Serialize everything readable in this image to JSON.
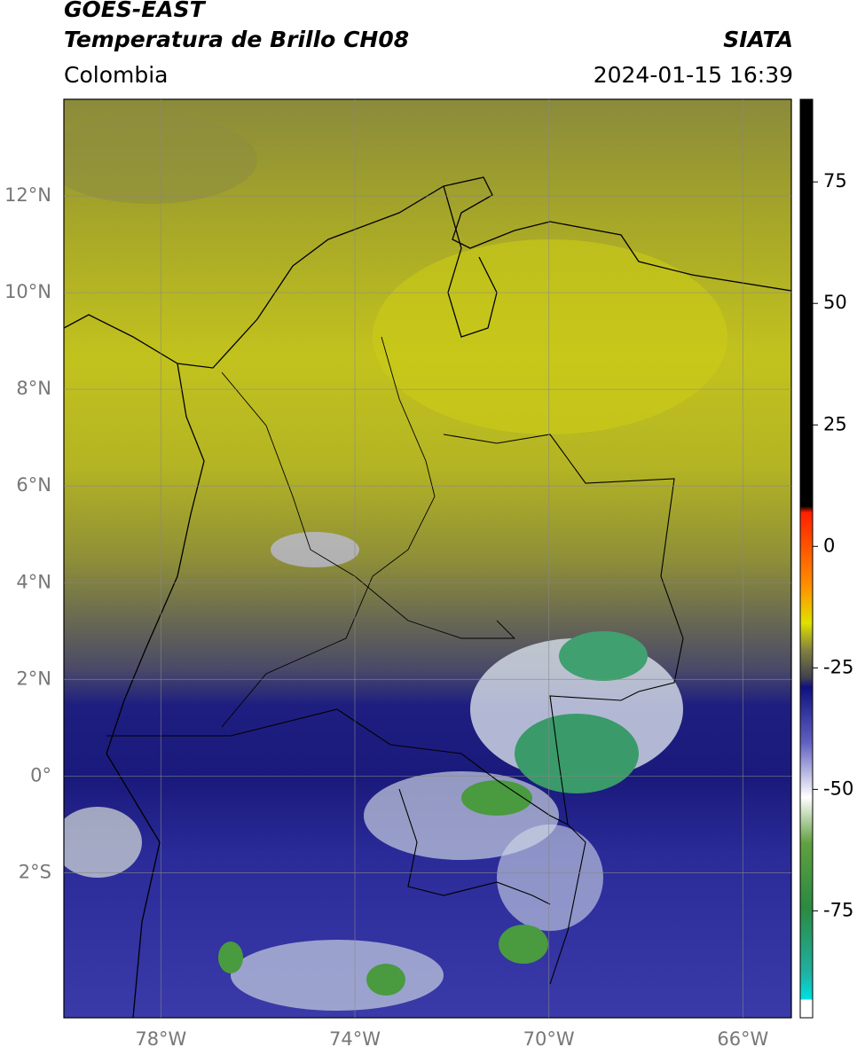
{
  "header": {
    "title": "GOES-EAST",
    "subtitle": "Temperatura de Brillo CH08",
    "source": "SIATA",
    "region": "Colombia",
    "datetime": "2024-01-15 16:39"
  },
  "map": {
    "lonlim": [
      -80,
      -65
    ],
    "latlim": [
      -5,
      14
    ],
    "lon_ticks": [
      {
        "value": -78,
        "label": "78°W"
      },
      {
        "value": -74,
        "label": "74°W"
      },
      {
        "value": -70,
        "label": "70°W"
      },
      {
        "value": -66,
        "label": "66°W"
      }
    ],
    "lat_ticks": [
      {
        "value": 12,
        "label": "12°N"
      },
      {
        "value": 10,
        "label": "10°N"
      },
      {
        "value": 8,
        "label": "8°N"
      },
      {
        "value": 6,
        "label": "6°N"
      },
      {
        "value": 4,
        "label": "4°N"
      },
      {
        "value": 2,
        "label": "2°N"
      },
      {
        "value": 0,
        "label": "0°"
      },
      {
        "value": -2,
        "label": "2°S"
      }
    ],
    "grid": true
  },
  "colorbar": {
    "lim": [
      -97,
      92
    ],
    "ticks": [
      75,
      50,
      25,
      0,
      -25,
      -50,
      -75
    ]
  }
}
